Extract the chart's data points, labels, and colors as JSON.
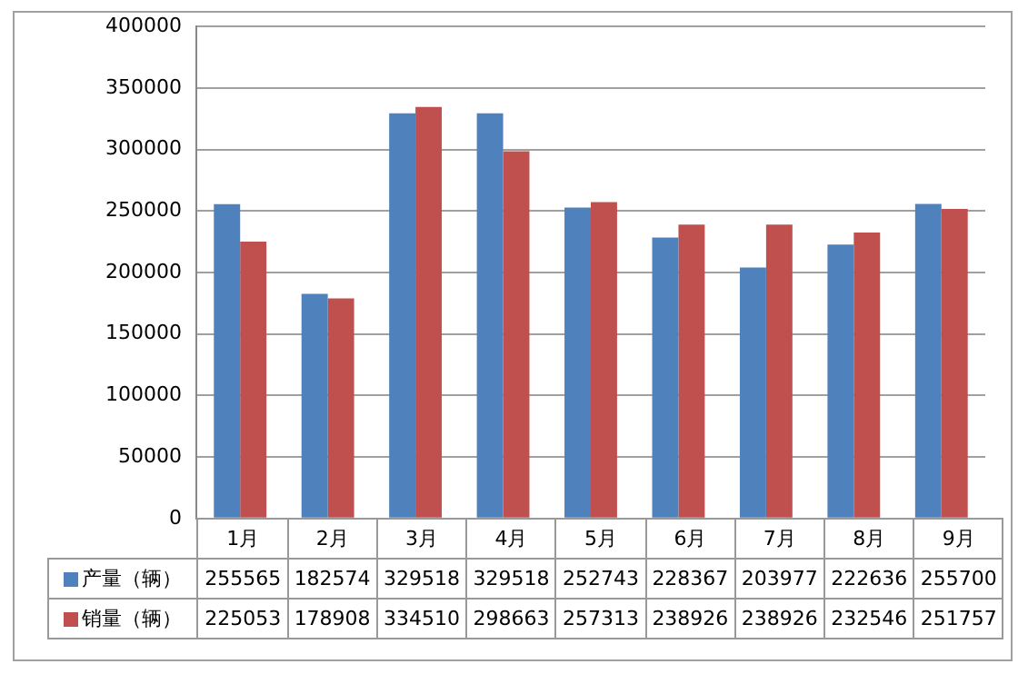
{
  "chart_data": {
    "type": "bar",
    "categories": [
      "1月",
      "2月",
      "3月",
      "4月",
      "5月",
      "6月",
      "7月",
      "8月",
      "9月"
    ],
    "series": [
      {
        "name": "产量（辆）",
        "color": "#4f81bd",
        "values": [
          255565,
          182574,
          329518,
          329518,
          252743,
          228367,
          203977,
          222636,
          255700
        ]
      },
      {
        "name": "销量（辆）",
        "color": "#c0504d",
        "values": [
          225053,
          178908,
          334510,
          298663,
          257313,
          238926,
          238926,
          232546,
          251757
        ]
      }
    ],
    "ylim": [
      0,
      400000
    ],
    "yticks": [
      0,
      50000,
      100000,
      150000,
      200000,
      250000,
      300000,
      350000,
      400000
    ],
    "grid": "y",
    "legend": "bottom",
    "data_labels": true
  }
}
